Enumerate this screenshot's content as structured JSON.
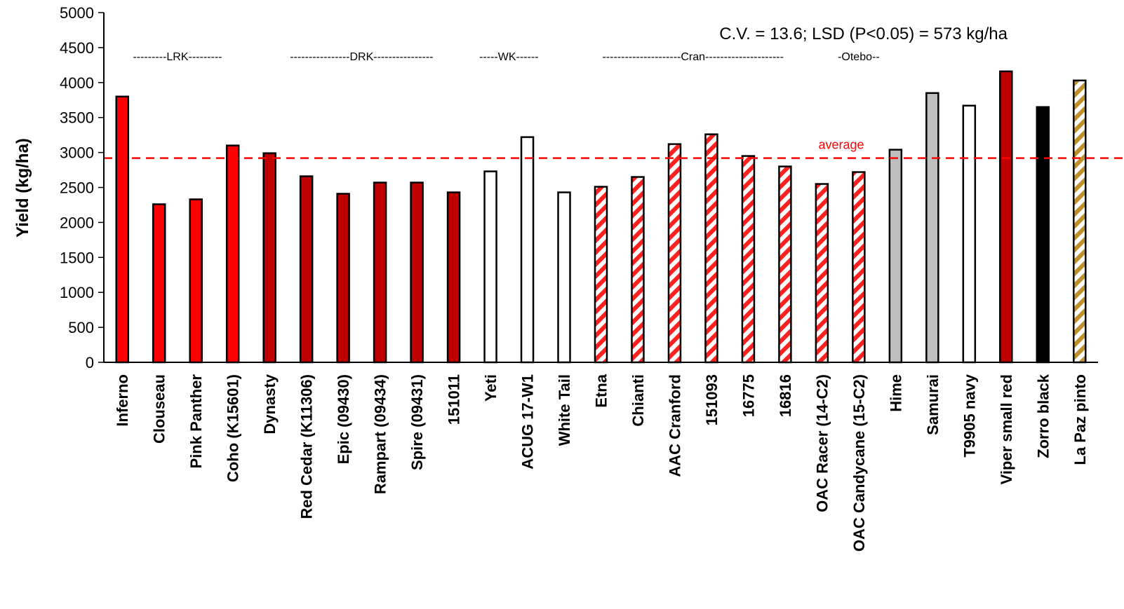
{
  "chart_data": {
    "type": "bar",
    "ylabel": "Yield (kg/ha)",
    "xlabel": "",
    "ylim": [
      0,
      5000
    ],
    "yticks": [
      0,
      500,
      1000,
      1500,
      2000,
      2500,
      3000,
      3500,
      4000,
      4500,
      5000
    ],
    "grid": false,
    "annotation": "C.V. = 13.6; LSD (P<0.05) = 573 kg/ha",
    "average": {
      "label": "average",
      "value": 2920,
      "color": "#ff0000"
    },
    "groups": [
      {
        "label": "---------LRK---------",
        "from": 0,
        "to": 3
      },
      {
        "label": "----------------DRK----------------",
        "from": 4,
        "to": 9
      },
      {
        "label": "-----WK------",
        "from": 10,
        "to": 11
      },
      {
        "label": "---------------------Cran---------------------",
        "from": 12,
        "to": 19
      },
      {
        "label": "-Otebo--",
        "from": 20,
        "to": 20
      }
    ],
    "categories": [
      "Inferno",
      "Clouseau",
      "Pink Panther",
      "Coho (K15601)",
      "Dynasty",
      "Red Cedar (K11306)",
      "Epic (09430)",
      "Rampart (09434)",
      "Spire (09431)",
      "151011",
      "Yeti",
      "ACUG 17-W1",
      "White Tail",
      "Etna",
      "Chianti",
      "AAC Cranford",
      "151093",
      "16775",
      "16816",
      "OAC Racer (14-C2)",
      "OAC Candycane (15-C2)",
      "Hime",
      "Samurai",
      "T9905 navy",
      "Viper small red",
      "Zorro black",
      "La Paz pinto"
    ],
    "values": [
      3800,
      2260,
      2330,
      3100,
      2990,
      2660,
      2410,
      2570,
      2570,
      2430,
      2730,
      3220,
      2430,
      2510,
      2650,
      3120,
      3260,
      2950,
      2800,
      2550,
      2720,
      3040,
      3850,
      3670,
      4160,
      3650,
      4030
    ],
    "styles": [
      "red",
      "red",
      "red",
      "red",
      "darkred",
      "darkred",
      "darkred",
      "darkred",
      "darkred",
      "darkred",
      "white",
      "white",
      "white",
      "redstripe",
      "redstripe",
      "redstripe",
      "redstripe",
      "redstripe",
      "redstripe",
      "redstripe",
      "redstripe",
      "gray",
      "gray",
      "white",
      "darkred",
      "black",
      "goldstripe"
    ],
    "colors": {
      "red": "#ff0000",
      "darkred": "#c00000",
      "white": "#ffffff",
      "gray": "#bfbfbf",
      "black": "#000000",
      "stripe_red": "#ff2020",
      "stripe_gold": "#c0902a"
    }
  }
}
